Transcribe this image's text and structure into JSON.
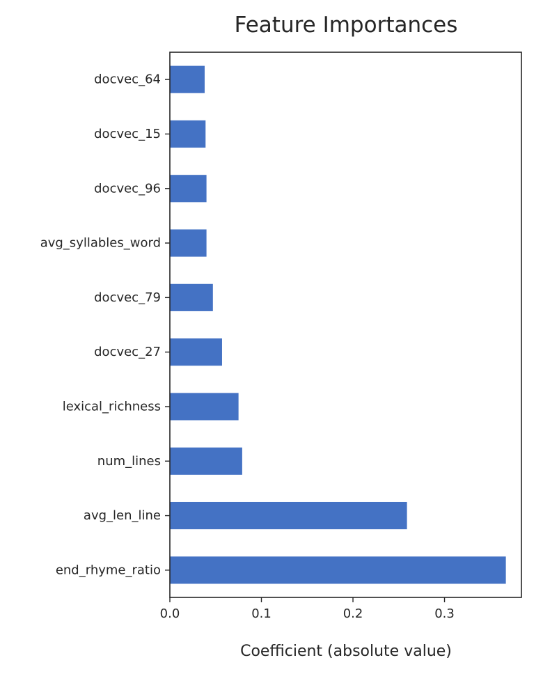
{
  "chart_data": {
    "type": "bar",
    "orientation": "horizontal",
    "title": "Feature Importances",
    "xlabel": "Coefficient (absolute value)",
    "ylabel": "",
    "xlim": [
      0,
      0.384
    ],
    "xticks": [
      "0.0",
      "0.1",
      "0.2",
      "0.3"
    ],
    "xtick_values": [
      0.0,
      0.1,
      0.2,
      0.3
    ],
    "categories": [
      "docvec_64",
      "docvec_15",
      "docvec_96",
      "avg_syllables_word",
      "docvec_79",
      "docvec_27",
      "lexical_richness",
      "num_lines",
      "avg_len_line",
      "end_rhyme_ratio"
    ],
    "values": [
      0.038,
      0.039,
      0.04,
      0.04,
      0.047,
      0.057,
      0.075,
      0.079,
      0.259,
      0.367
    ],
    "bar_color": "#4472c4",
    "grid": false,
    "legend": false
  }
}
